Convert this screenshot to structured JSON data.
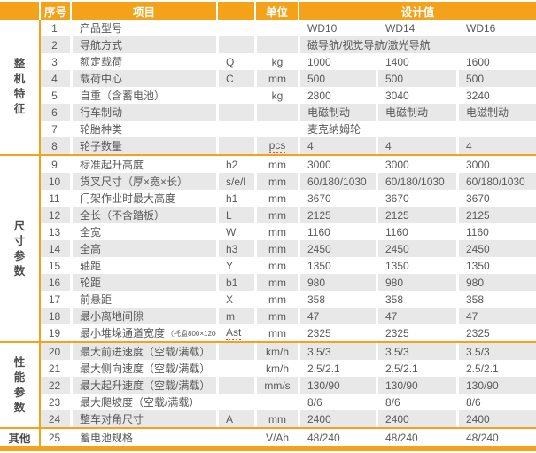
{
  "meta": {
    "accent_color": "#F5A21B",
    "alt_row_color": "#E8E8E8",
    "text_color": "#58595B",
    "category_text_color": "#4C4C4E",
    "header_text_color": "#FFFFFF",
    "spellcheck_dot_color": "#E94F3D"
  },
  "header": {
    "no": "序号",
    "item": "项目",
    "symbol": "",
    "unit": "单位",
    "design": "设计值"
  },
  "models": [
    "WD10",
    "WD14",
    "WD16"
  ],
  "sections": [
    {
      "category": "整机特征",
      "vertical": true,
      "rows": [
        {
          "no": "1",
          "item": "产品型号",
          "symbol": "",
          "unit": "",
          "values": [
            "WD10",
            "WD14",
            "WD16"
          ]
        },
        {
          "no": "2",
          "item": "导航方式",
          "symbol": "",
          "unit": "",
          "span": "磁导航/视觉导航/激光导航"
        },
        {
          "no": "3",
          "item": "额定载荷",
          "symbol": "Q",
          "unit": "kg",
          "values": [
            "1000",
            "1400",
            "1600"
          ]
        },
        {
          "no": "4",
          "item": "载荷中心",
          "symbol": "C",
          "unit": "mm",
          "values": [
            "500",
            "500",
            "500"
          ]
        },
        {
          "no": "5",
          "item": "自重（含蓄电池）",
          "symbol": "",
          "unit": "kg",
          "values": [
            "2800",
            "3040",
            "3240"
          ]
        },
        {
          "no": "6",
          "item": "行车制动",
          "symbol": "",
          "unit": "",
          "values": [
            "电磁制动",
            "电磁制动",
            "电磁制动"
          ]
        },
        {
          "no": "7",
          "item": "轮胎种类",
          "symbol": "",
          "unit": "",
          "span": "麦克纳姆轮"
        },
        {
          "no": "8",
          "item": "轮子数量",
          "symbol": "",
          "unit": "pcs",
          "unit_dotted": true,
          "values": [
            "4",
            "4",
            "4"
          ]
        }
      ]
    },
    {
      "category": "尺寸参数",
      "vertical": true,
      "rows": [
        {
          "no": "9",
          "item": "标准起升高度",
          "symbol": "h2",
          "unit": "mm",
          "values": [
            "3000",
            "3000",
            "3000"
          ]
        },
        {
          "no": "10",
          "item": "货叉尺寸（厚×宽×长）",
          "symbol": "s/e/l",
          "unit": "mm",
          "values": [
            "60/180/1030",
            "60/180/1030",
            "60/180/1030"
          ]
        },
        {
          "no": "11",
          "item": "门架作业时最大高度",
          "symbol": "h1",
          "unit": "mm",
          "values": [
            "3670",
            "3670",
            "3670"
          ]
        },
        {
          "no": "12",
          "item": "全长（不含踏板）",
          "symbol": "L",
          "unit": "mm",
          "values": [
            "2125",
            "2125",
            "2125"
          ]
        },
        {
          "no": "13",
          "item": "全宽",
          "symbol": "W",
          "unit": "mm",
          "values": [
            "1160",
            "1160",
            "1160"
          ]
        },
        {
          "no": "14",
          "item": "全高",
          "symbol": "h3",
          "unit": "mm",
          "values": [
            "2450",
            "2450",
            "2450"
          ]
        },
        {
          "no": "15",
          "item": "轴距",
          "symbol": "Y",
          "unit": "mm",
          "values": [
            "1350",
            "1350",
            "1350"
          ]
        },
        {
          "no": "16",
          "item": "轮距",
          "symbol": "b1",
          "unit": "mm",
          "values": [
            "980",
            "980",
            "980"
          ]
        },
        {
          "no": "17",
          "item": "前悬距",
          "symbol": "X",
          "unit": "mm",
          "values": [
            "358",
            "358",
            "358"
          ]
        },
        {
          "no": "18",
          "item": "最小离地间隙",
          "symbol": "m",
          "unit": "mm",
          "values": [
            "47",
            "47",
            "47"
          ]
        },
        {
          "no": "19",
          "item": "最小堆垛通道宽度",
          "item_small": "（托盘800×1200）",
          "symbol": "Ast",
          "symbol_dotted": true,
          "unit": "mm",
          "values": [
            "2325",
            "2325",
            "2325"
          ]
        }
      ]
    },
    {
      "category": "性能参数",
      "vertical": true,
      "rows": [
        {
          "no": "20",
          "item": "最大前进速度（空载/满载）",
          "symbol": "",
          "unit": "km/h",
          "values": [
            "3.5/3",
            "3.5/3",
            "3.5/3"
          ]
        },
        {
          "no": "21",
          "item": "最大侧向速度（空载/满载）",
          "symbol": "",
          "unit": "km/h",
          "values": [
            "2.5/2.1",
            "2.5/2.1",
            "2.5/2.1"
          ]
        },
        {
          "no": "22",
          "item": "最大起升速度（空载/满载）",
          "symbol": "",
          "unit": "mm/s",
          "values": [
            "130/90",
            "130/90",
            "130/90"
          ]
        },
        {
          "no": "23",
          "item": "最大爬坡度（空载/满载）",
          "symbol": "",
          "unit": "",
          "values": [
            "8/6",
            "8/6",
            "8/6"
          ]
        },
        {
          "no": "24",
          "item": "整车对角尺寸",
          "symbol": "A",
          "unit": "mm",
          "values": [
            "2400",
            "2400",
            "2400"
          ]
        }
      ]
    },
    {
      "category": "其他",
      "vertical": false,
      "rows": [
        {
          "no": "25",
          "item": "蓄电池规格",
          "symbol": "",
          "unit": "V/Ah",
          "values": [
            "48/240",
            "48/240",
            "48/240"
          ]
        }
      ]
    }
  ]
}
